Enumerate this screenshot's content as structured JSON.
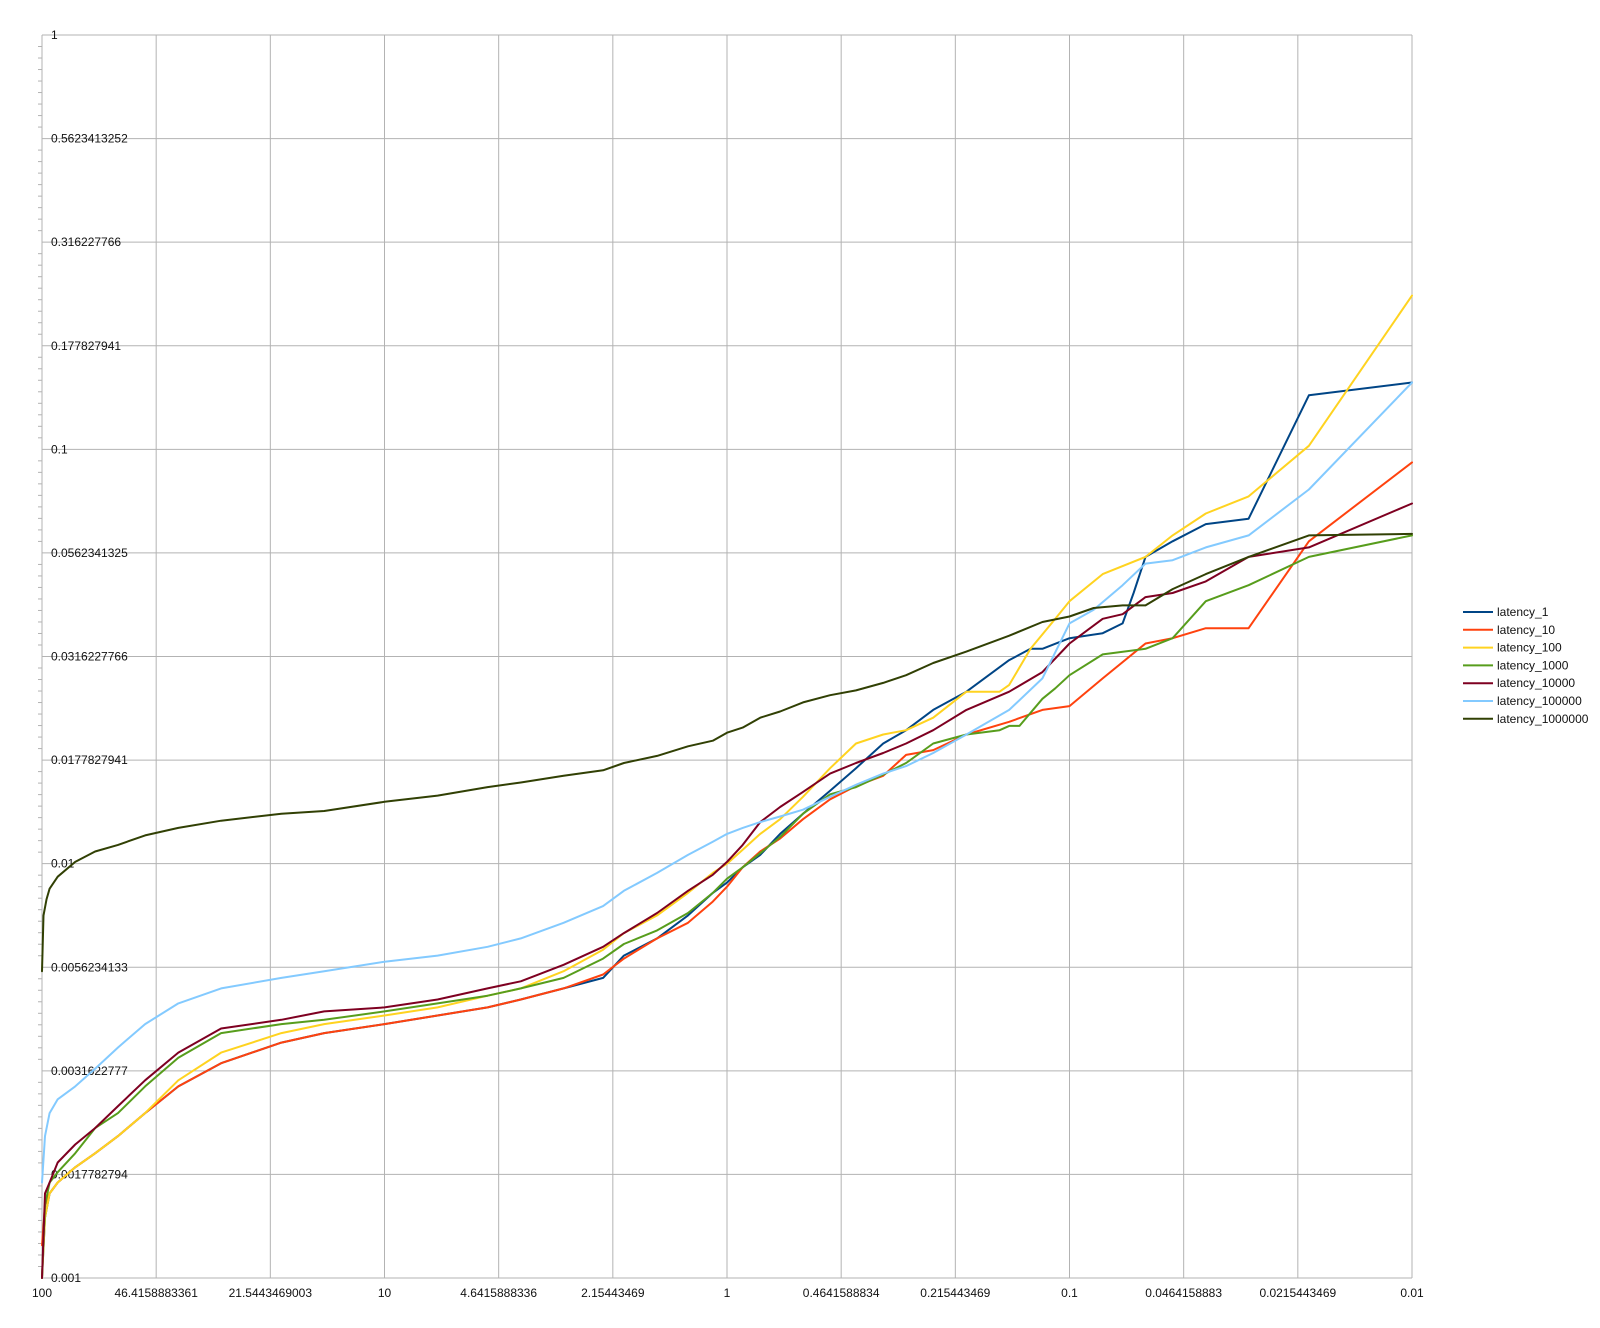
{
  "chart_data": {
    "type": "line",
    "title": "",
    "xlabel": "",
    "ylabel": "",
    "x_scale": "log-reversed",
    "y_scale": "log",
    "xlim": [
      100,
      0.01
    ],
    "ylim": [
      0.001,
      1
    ],
    "grid": true,
    "legend_position": "right",
    "x_tick_labels": [
      "100",
      "46.4158883361",
      "21.5443469003",
      "10",
      "4.6415888336",
      "2.15443469",
      "1",
      "0.4641588834",
      "0.215443469",
      "0.1",
      "0.0464158883",
      "0.0215443469",
      "0.01"
    ],
    "y_tick_labels": [
      "1",
      "0.5623413252",
      "0.316227766",
      "0.177827941",
      "0.1",
      "0.0562341325",
      "0.0316227766",
      "0.0177827941",
      "0.01",
      "0.0056234133",
      "0.0031622777",
      "0.0017782794",
      "0.001"
    ],
    "series": [
      {
        "name": "latency_1",
        "color": "#004586",
        "x": [
          100,
          98,
          95,
          90,
          80,
          70,
          60,
          50,
          40,
          30,
          20,
          15,
          10,
          7,
          5,
          4,
          3,
          2.3,
          2,
          1.6,
          1.3,
          1.1,
          1,
          0.9,
          0.8,
          0.7,
          0.6,
          0.5,
          0.42,
          0.35,
          0.3,
          0.25,
          0.2,
          0.15,
          0.13,
          0.12,
          0.1,
          0.08,
          0.07,
          0.065,
          0.06,
          0.05,
          0.04,
          0.03,
          0.02,
          0.01
        ],
        "values": [
          0.001,
          0.0014,
          0.0016,
          0.0017,
          0.00185,
          0.002,
          0.0022,
          0.0025,
          0.0029,
          0.0033,
          0.0037,
          0.0039,
          0.0041,
          0.0043,
          0.0045,
          0.0047,
          0.005,
          0.0053,
          0.006,
          0.0066,
          0.0075,
          0.0085,
          0.009,
          0.0098,
          0.0105,
          0.0118,
          0.0132,
          0.015,
          0.017,
          0.0195,
          0.021,
          0.0235,
          0.026,
          0.031,
          0.033,
          0.033,
          0.035,
          0.036,
          0.038,
          0.045,
          0.055,
          0.06,
          0.066,
          0.068,
          0.135,
          0.145
        ]
      },
      {
        "name": "latency_10",
        "color": "#ff420e",
        "x": [
          100,
          98,
          95,
          90,
          80,
          70,
          60,
          50,
          40,
          30,
          20,
          15,
          10,
          7,
          5,
          4,
          3,
          2.3,
          2,
          1.6,
          1.3,
          1.1,
          1,
          0.9,
          0.8,
          0.7,
          0.6,
          0.5,
          0.42,
          0.35,
          0.3,
          0.25,
          0.2,
          0.15,
          0.12,
          0.1,
          0.08,
          0.06,
          0.05,
          0.04,
          0.03,
          0.02,
          0.01
        ],
        "values": [
          0.0012,
          0.0015,
          0.0016,
          0.0017,
          0.00185,
          0.002,
          0.0022,
          0.0025,
          0.0029,
          0.0033,
          0.0037,
          0.0039,
          0.0041,
          0.0043,
          0.0045,
          0.0047,
          0.005,
          0.0054,
          0.0059,
          0.0066,
          0.0072,
          0.0081,
          0.0088,
          0.0098,
          0.0107,
          0.0115,
          0.0128,
          0.0143,
          0.0154,
          0.0163,
          0.0183,
          0.0188,
          0.0205,
          0.022,
          0.0235,
          0.024,
          0.028,
          0.034,
          0.035,
          0.037,
          0.037,
          0.06,
          0.093
        ]
      },
      {
        "name": "latency_100",
        "color": "#ffd320",
        "x": [
          100,
          98,
          95,
          90,
          80,
          70,
          60,
          50,
          40,
          30,
          20,
          15,
          10,
          7,
          5,
          4,
          3,
          2.3,
          2,
          1.6,
          1.3,
          1.1,
          1,
          0.9,
          0.8,
          0.7,
          0.6,
          0.5,
          0.42,
          0.35,
          0.3,
          0.25,
          0.2,
          0.16,
          0.15,
          0.13,
          0.11,
          0.1,
          0.08,
          0.06,
          0.05,
          0.04,
          0.03,
          0.02,
          0.01
        ],
        "values": [
          0.001,
          0.0014,
          0.0016,
          0.0017,
          0.00185,
          0.002,
          0.0022,
          0.0025,
          0.003,
          0.0035,
          0.0039,
          0.0041,
          0.0043,
          0.0045,
          0.0048,
          0.005,
          0.0055,
          0.0062,
          0.0068,
          0.0075,
          0.0085,
          0.0095,
          0.01,
          0.0108,
          0.0118,
          0.0128,
          0.0145,
          0.017,
          0.0195,
          0.0205,
          0.021,
          0.0225,
          0.026,
          0.026,
          0.027,
          0.033,
          0.039,
          0.043,
          0.05,
          0.055,
          0.062,
          0.07,
          0.077,
          0.102,
          0.235
        ]
      },
      {
        "name": "latency_1000",
        "color": "#579d1c",
        "x": [
          100,
          98,
          95,
          90,
          80,
          70,
          60,
          50,
          40,
          30,
          20,
          15,
          10,
          7,
          5,
          4,
          3,
          2.3,
          2,
          1.6,
          1.3,
          1.1,
          1,
          0.9,
          0.8,
          0.7,
          0.6,
          0.5,
          0.42,
          0.35,
          0.3,
          0.25,
          0.2,
          0.16,
          0.15,
          0.14,
          0.12,
          0.11,
          0.1,
          0.08,
          0.06,
          0.05,
          0.04,
          0.03,
          0.02,
          0.01
        ],
        "values": [
          0.001,
          0.0015,
          0.0017,
          0.0018,
          0.002,
          0.0023,
          0.0025,
          0.0029,
          0.0034,
          0.0039,
          0.0041,
          0.0042,
          0.0044,
          0.0046,
          0.0048,
          0.005,
          0.0053,
          0.0059,
          0.0064,
          0.0069,
          0.0076,
          0.0085,
          0.0092,
          0.0098,
          0.0106,
          0.0116,
          0.0132,
          0.0147,
          0.0153,
          0.0164,
          0.0175,
          0.0195,
          0.0205,
          0.021,
          0.0215,
          0.0215,
          0.025,
          0.0265,
          0.0285,
          0.032,
          0.033,
          0.035,
          0.043,
          0.047,
          0.055,
          0.062
        ]
      },
      {
        "name": "latency_10000",
        "color": "#7e0021",
        "x": [
          100,
          98,
          95,
          90,
          80,
          70,
          60,
          50,
          40,
          30,
          20,
          15,
          10,
          7,
          5,
          4,
          3,
          2.3,
          2,
          1.6,
          1.3,
          1.1,
          1,
          0.9,
          0.8,
          0.7,
          0.6,
          0.5,
          0.42,
          0.35,
          0.3,
          0.25,
          0.2,
          0.15,
          0.12,
          0.1,
          0.08,
          0.07,
          0.06,
          0.05,
          0.04,
          0.03,
          0.02,
          0.01
        ],
        "values": [
          0.001,
          0.0016,
          0.0017,
          0.0019,
          0.0021,
          0.0023,
          0.0026,
          0.003,
          0.0035,
          0.004,
          0.0042,
          0.0044,
          0.0045,
          0.0047,
          0.005,
          0.0052,
          0.0057,
          0.0063,
          0.0068,
          0.0076,
          0.0086,
          0.0094,
          0.0101,
          0.0111,
          0.0126,
          0.0137,
          0.0149,
          0.0165,
          0.0175,
          0.0185,
          0.0195,
          0.021,
          0.0235,
          0.026,
          0.029,
          0.034,
          0.039,
          0.04,
          0.044,
          0.045,
          0.048,
          0.055,
          0.058,
          0.074
        ]
      },
      {
        "name": "latency_100000",
        "color": "#83caff",
        "x": [
          100,
          98,
          95,
          90,
          80,
          70,
          60,
          50,
          40,
          30,
          20,
          15,
          10,
          7,
          5,
          4,
          3,
          2.3,
          2,
          1.6,
          1.3,
          1.1,
          1,
          0.9,
          0.8,
          0.7,
          0.6,
          0.5,
          0.42,
          0.35,
          0.3,
          0.25,
          0.2,
          0.15,
          0.12,
          0.1,
          0.085,
          0.07,
          0.06,
          0.05,
          0.04,
          0.03,
          0.02,
          0.01
        ],
        "values": [
          0.0017,
          0.0022,
          0.0025,
          0.0027,
          0.0029,
          0.0032,
          0.0036,
          0.0041,
          0.0046,
          0.005,
          0.0053,
          0.0055,
          0.0058,
          0.006,
          0.0063,
          0.0066,
          0.0072,
          0.0079,
          0.0086,
          0.0095,
          0.0105,
          0.0113,
          0.0118,
          0.0122,
          0.0126,
          0.013,
          0.0135,
          0.0145,
          0.0155,
          0.0165,
          0.0172,
          0.0185,
          0.0205,
          0.0235,
          0.028,
          0.038,
          0.041,
          0.047,
          0.053,
          0.054,
          0.058,
          0.062,
          0.08,
          0.145
        ]
      },
      {
        "name": "latency_1000000",
        "color": "#314004",
        "x": [
          100,
          99,
          97,
          95,
          90,
          80,
          70,
          60,
          50,
          40,
          30,
          20,
          15,
          10,
          7,
          5,
          4,
          3,
          2.3,
          2,
          1.6,
          1.3,
          1.1,
          1,
          0.9,
          0.8,
          0.7,
          0.6,
          0.5,
          0.42,
          0.35,
          0.3,
          0.25,
          0.2,
          0.15,
          0.12,
          0.1,
          0.085,
          0.07,
          0.06,
          0.05,
          0.04,
          0.03,
          0.02,
          0.01
        ],
        "values": [
          0.0055,
          0.0075,
          0.0082,
          0.0087,
          0.0093,
          0.0101,
          0.0107,
          0.0111,
          0.0117,
          0.0122,
          0.0127,
          0.0132,
          0.0134,
          0.0141,
          0.0146,
          0.0153,
          0.0157,
          0.0163,
          0.0168,
          0.0175,
          0.0182,
          0.0192,
          0.0198,
          0.0207,
          0.0213,
          0.0225,
          0.0233,
          0.0245,
          0.0255,
          0.0262,
          0.0273,
          0.0285,
          0.0305,
          0.0325,
          0.0355,
          0.0383,
          0.0395,
          0.0414,
          0.042,
          0.042,
          0.046,
          0.05,
          0.055,
          0.062,
          0.0625
        ]
      }
    ]
  }
}
